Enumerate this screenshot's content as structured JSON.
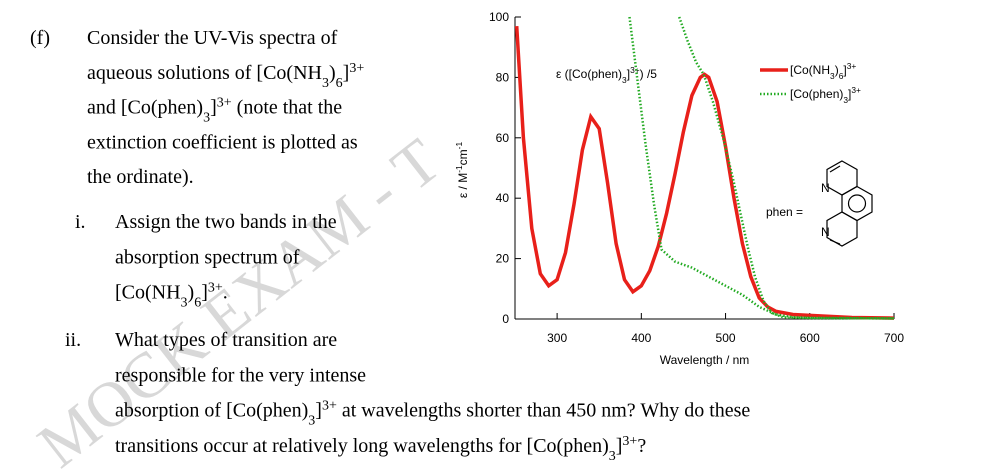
{
  "part": "(f)",
  "intro": [
    "Consider the UV-Vis spectra of",
    "aqueous solutions of [Co(NH3)6]3+",
    "and [Co(phen)3]3+ (note that the",
    "extinction coefficient is plotted as",
    "the ordinate)."
  ],
  "questions": [
    {
      "number": "i.",
      "lines": [
        "Assign the two bands in the",
        "absorption spectrum of",
        "[Co(NH3)6]3+."
      ]
    },
    {
      "number": "ii.",
      "lines": [
        "What types of transition are",
        "responsible for the very intense",
        "absorption of [Co(phen)3]3+ at wavelengths shorter than 450 nm? Why do these",
        "transitions occur at relatively long wavelengths for [Co(phen)3]3+?"
      ]
    }
  ],
  "watermark": "MOCK EXAM - T",
  "structure": {
    "label": "phen =",
    "atoms": [
      "N",
      "N"
    ]
  },
  "chart_data": {
    "type": "line",
    "xlabel": "Wavelength / nm",
    "ylabel": "ε / M-1cm-1",
    "annotation": "ε ([Co(phen)3]3+) /5",
    "xlim": [
      250,
      700
    ],
    "xticks": [
      300,
      400,
      500,
      600,
      700
    ],
    "ylim": [
      0,
      100
    ],
    "yticks": [
      0,
      20,
      40,
      60,
      80,
      100
    ],
    "legend": "upper right",
    "series": [
      {
        "name": "[Co(NH3)6]3+",
        "color": "#e8201a",
        "style": "solid",
        "x": [
          252,
          260,
          270,
          280,
          290,
          300,
          310,
          320,
          330,
          340,
          350,
          360,
          370,
          380,
          390,
          400,
          410,
          420,
          430,
          440,
          450,
          460,
          470,
          475,
          480,
          490,
          500,
          510,
          520,
          530,
          540,
          550,
          560,
          580,
          600,
          650,
          700
        ],
        "values": [
          97,
          60,
          30,
          15,
          11,
          13,
          22,
          38,
          56,
          67,
          63,
          45,
          25,
          13,
          9,
          11,
          16,
          24,
          35,
          48,
          62,
          74,
          80,
          81,
          80,
          72,
          57,
          40,
          25,
          14,
          7,
          4,
          2.5,
          1.5,
          1.2,
          0.5,
          0.3
        ]
      },
      {
        "name": "[Co(phen)3]3+",
        "color": "#22aa22",
        "style": "dotted",
        "x": [
          386,
          395,
          405,
          415,
          424,
          440,
          460,
          480,
          500,
          520,
          540,
          560,
          580,
          600,
          650,
          700
        ],
        "values": [
          100,
          80,
          58,
          38,
          23,
          19,
          17,
          14,
          11,
          8,
          4,
          1.5,
          0.6,
          0.4,
          0.3,
          0.2
        ]
      },
      {
        "color": "#22aa22",
        "style": "dotted",
        "x": [
          445,
          455,
          465,
          474,
          485,
          498,
          510,
          520,
          527,
          535,
          545,
          555,
          569,
          600,
          700
        ],
        "values": [
          100,
          92,
          85,
          81,
          72,
          59,
          45,
          32,
          23,
          14,
          6,
          2,
          0.5,
          0.3,
          0.2
        ]
      }
    ]
  }
}
